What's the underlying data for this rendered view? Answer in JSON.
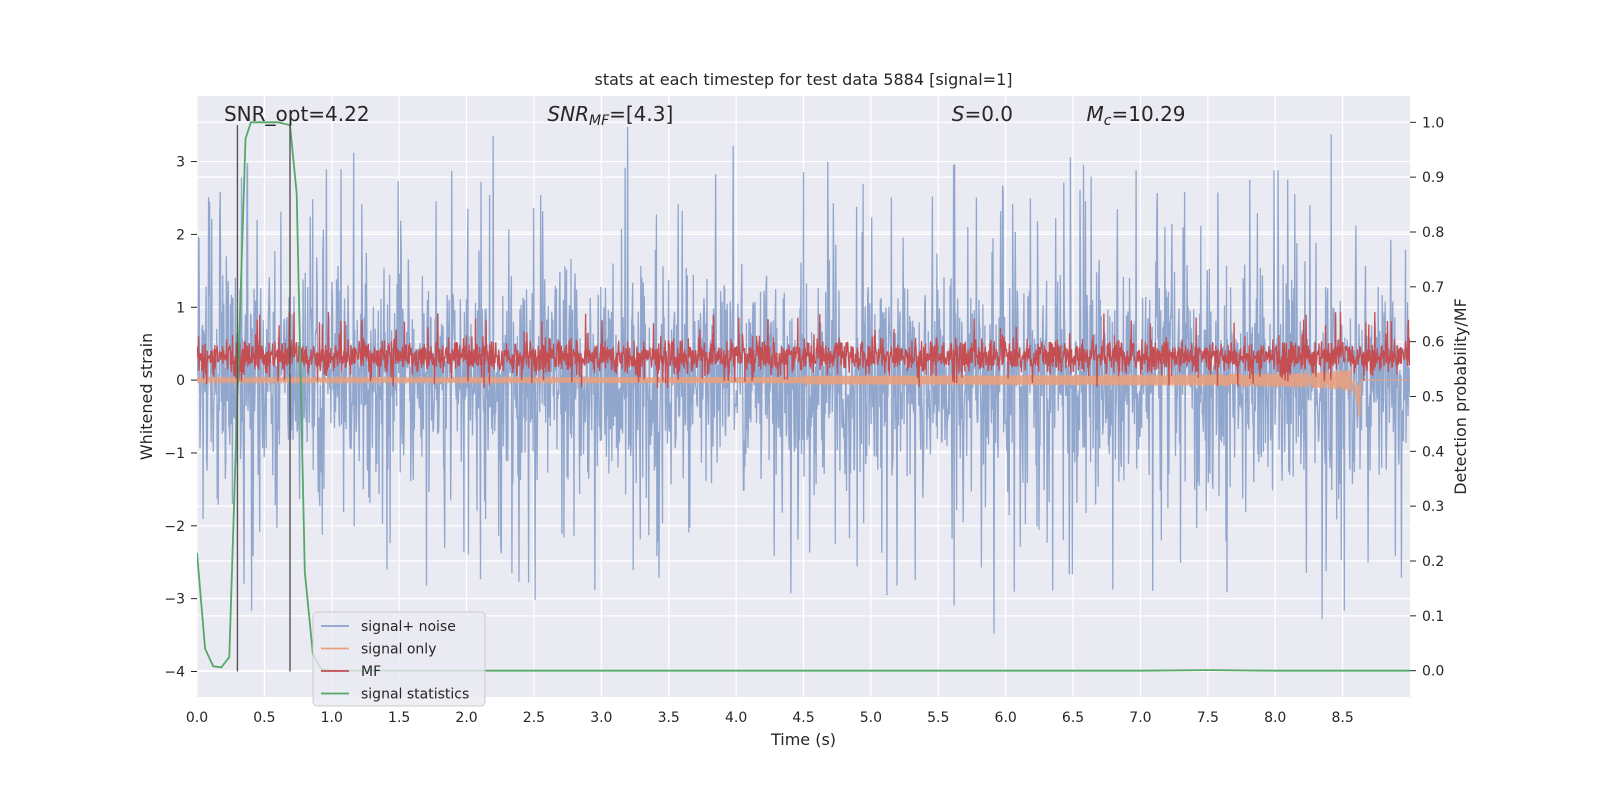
{
  "chart_data": {
    "type": "line",
    "title": "stats at each timestep for test data 5884 [signal=1]",
    "xlabel": "Time (s)",
    "ylabel": "Whitened strain",
    "y2label": "Detection probability/MF",
    "xlim": [
      0.0,
      9.0
    ],
    "ylim": [
      -4.35,
      3.9
    ],
    "y2lim": [
      -0.048,
      1.048
    ],
    "xticks": [
      "0.0",
      "0.5",
      "1.0",
      "1.5",
      "2.0",
      "2.5",
      "3.0",
      "3.5",
      "4.0",
      "4.5",
      "5.0",
      "5.5",
      "6.0",
      "6.5",
      "7.0",
      "7.5",
      "8.0",
      "8.5"
    ],
    "yticks": [
      "−4",
      "−3",
      "−2",
      "−1",
      "0",
      "1",
      "2",
      "3"
    ],
    "y2ticks": [
      "0.0",
      "0.1",
      "0.2",
      "0.3",
      "0.4",
      "0.5",
      "0.6",
      "0.7",
      "0.8",
      "0.9",
      "1.0"
    ],
    "grid": true,
    "legend_position": "lower-left",
    "annotations": [
      {
        "text": "SNR_opt=4.22",
        "x": 0.2
      },
      {
        "text": "SNR",
        "sub": "MF",
        "suffix": "=[4.3]",
        "x": 2.6
      },
      {
        "text": "S",
        "suffix": "=0.0",
        "x": 5.6
      },
      {
        "text": "M",
        "sub": "c",
        "suffix": "=10.29",
        "x": 6.6
      }
    ],
    "vlines": [
      {
        "x": 0.3,
        "y": [
          -4.0,
          3.5
        ]
      },
      {
        "x": 0.69,
        "y": [
          -4.0,
          3.5
        ]
      }
    ],
    "series": [
      {
        "name": "signal+ noise",
        "color": "#8ca2ca",
        "axis": "left",
        "style": "noise",
        "amplitude_envelope": {
          "low_typical": -1.7,
          "high_typical": 1.7,
          "peaks_high": [
            3.5,
            3.2,
            3.15
          ],
          "peaks_low": [
            -3.9,
            -3.55,
            -3.35
          ]
        }
      },
      {
        "name": "signal only",
        "color": "#e8a07e",
        "axis": "left",
        "style": "chirp",
        "chirp_end_x": 8.63,
        "chirp_min_y": -0.6
      },
      {
        "name": "MF",
        "color": "#c44e52",
        "axis": "right",
        "style": "mf",
        "band": [
          0.545,
          0.6
        ],
        "peaks": [
          0.66,
          0.65,
          0.64
        ]
      },
      {
        "name": "signal statistics",
        "color": "#55a868",
        "axis": "right",
        "x": [
          0.0,
          0.06,
          0.12,
          0.18,
          0.24,
          0.3,
          0.36,
          0.4,
          0.5,
          0.6,
          0.69,
          0.74,
          0.8,
          0.86,
          0.92,
          1.0,
          2.0,
          3.0,
          4.0,
          5.0,
          6.0,
          7.0,
          7.5,
          8.0,
          9.0
        ],
        "y": [
          0.215,
          0.04,
          0.008,
          0.006,
          0.025,
          0.5,
          0.97,
          1.0,
          1.0,
          1.0,
          0.995,
          0.87,
          0.18,
          0.03,
          0.003,
          0.0,
          0.0,
          0.0,
          0.0,
          0.0,
          0.0,
          0.0,
          0.001,
          0.0,
          0.0
        ]
      }
    ]
  }
}
